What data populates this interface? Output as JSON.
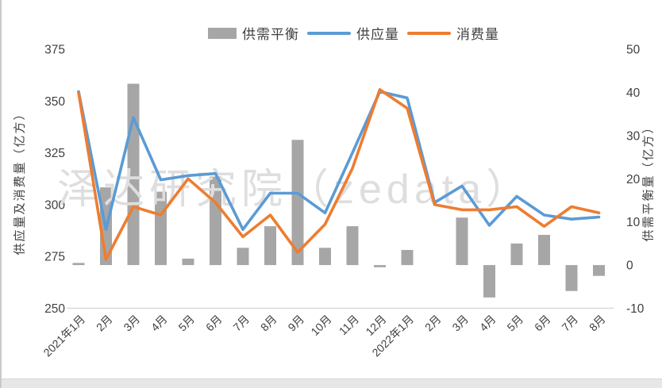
{
  "watermark": "泽达研究院（zedata）",
  "legend": {
    "items": [
      {
        "label": "供需平衡",
        "type": "bar",
        "color": "#A6A6A6"
      },
      {
        "label": "供应量",
        "type": "line",
        "color": "#5B9BD5"
      },
      {
        "label": "消费量",
        "type": "line",
        "color": "#ED7D31"
      }
    ]
  },
  "chart_data": {
    "type": "combo",
    "categories": [
      "2021年1月",
      "2月",
      "3月",
      "4月",
      "5月",
      "6月",
      "7月",
      "8月",
      "9月",
      "10月",
      "11月",
      "12月",
      "2022年1月",
      "2月",
      "3月",
      "4月",
      "5月",
      "6月",
      "7月",
      "8月"
    ],
    "series": [
      {
        "name": "供需平衡",
        "type": "bar",
        "axis": "right",
        "color": "#A6A6A6",
        "values": [
          0.5,
          18,
          42,
          17,
          1.5,
          20.5,
          4,
          9,
          29,
          4,
          9,
          -0.5,
          3.5,
          0,
          11,
          -7.5,
          5,
          7,
          -6,
          -2.5
        ]
      },
      {
        "name": "供应量",
        "type": "line",
        "axis": "left",
        "color": "#5B9BD5",
        "values": [
          354.5,
          288,
          342,
          312,
          314,
          315,
          288,
          305.5,
          305.5,
          296,
          325,
          354.5,
          351.5,
          301,
          309,
          290,
          304,
          295,
          293,
          294
        ]
      },
      {
        "name": "消费量",
        "type": "line",
        "axis": "left",
        "color": "#ED7D31",
        "values": [
          354,
          273.5,
          299,
          295,
          312.5,
          301,
          284.5,
          295,
          277,
          290.5,
          317.5,
          355.5,
          346.5,
          300,
          297.5,
          297.5,
          299,
          289.5,
          299,
          296
        ]
      }
    ],
    "left_axis": {
      "label": "供应量及消费量（亿方）",
      "min": 250,
      "max": 375,
      "ticks": [
        375,
        350,
        325,
        300,
        275,
        250
      ]
    },
    "right_axis": {
      "label": "供需平衡量（亿方）",
      "min": -10,
      "max": 50,
      "ticks": [
        50,
        40,
        30,
        20,
        10,
        0,
        -10
      ]
    },
    "legend_position": "top",
    "grid": false,
    "x_label_rotation": -45
  }
}
